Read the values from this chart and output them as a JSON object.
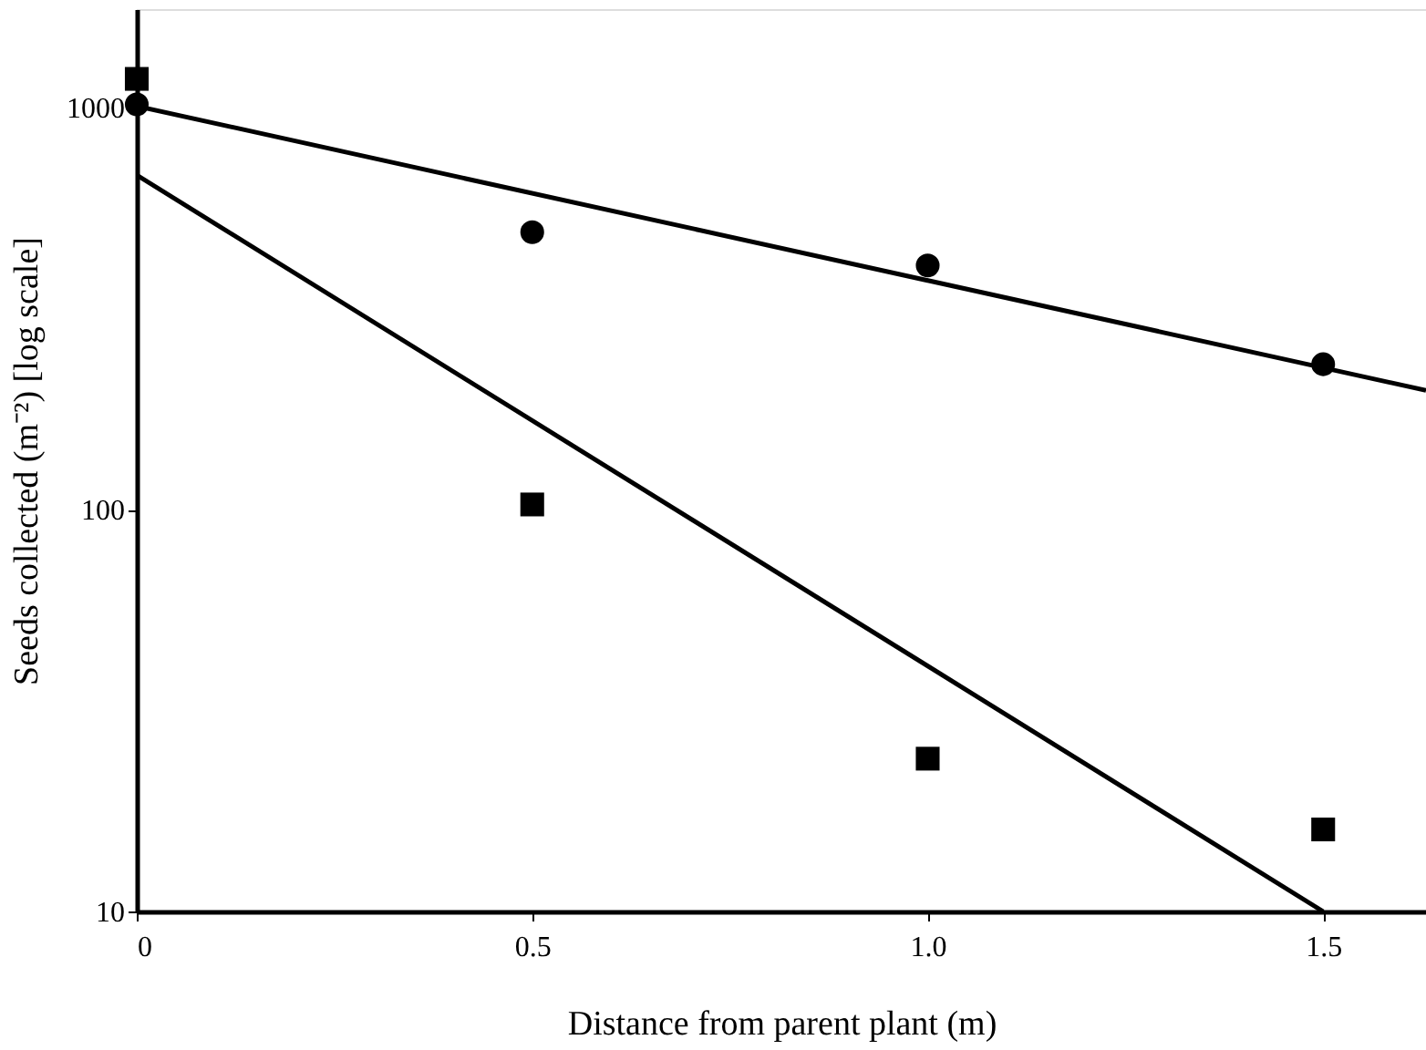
{
  "chart_data": {
    "type": "scatter",
    "xlabel": "Distance from parent plant (m)",
    "ylabel": "Seeds collected (m⁻²) [log scale]",
    "log": "y",
    "grid": false,
    "xlim": [
      0,
      1.63
    ],
    "xticks": [
      0,
      0.5,
      {
        "value": 1.0,
        "label": "1.0"
      },
      1.5
    ],
    "ylim": [
      10,
      1760
    ],
    "yticks": [
      10,
      100,
      1000
    ],
    "series": [
      {
        "marker": "circle",
        "color": "#000000",
        "x": [
          0,
          0.5,
          1.0,
          1.5
        ],
        "values": [
          1020,
          490,
          405,
          230
        ]
      },
      {
        "marker": "square",
        "color": "#000000",
        "x": [
          0,
          0.5,
          1.0,
          1.5
        ],
        "values": [
          1180,
          103,
          24,
          16
        ]
      },
      {
        "type": "line",
        "line_style": "solid",
        "color": "#000000",
        "x": [
          0,
          1.63
        ],
        "values": [
          1010,
          198
        ]
      },
      {
        "type": "line",
        "line_style": "solid",
        "color": "#000000",
        "x": [
          0,
          1.5
        ],
        "values": [
          680,
          10
        ]
      }
    ]
  }
}
